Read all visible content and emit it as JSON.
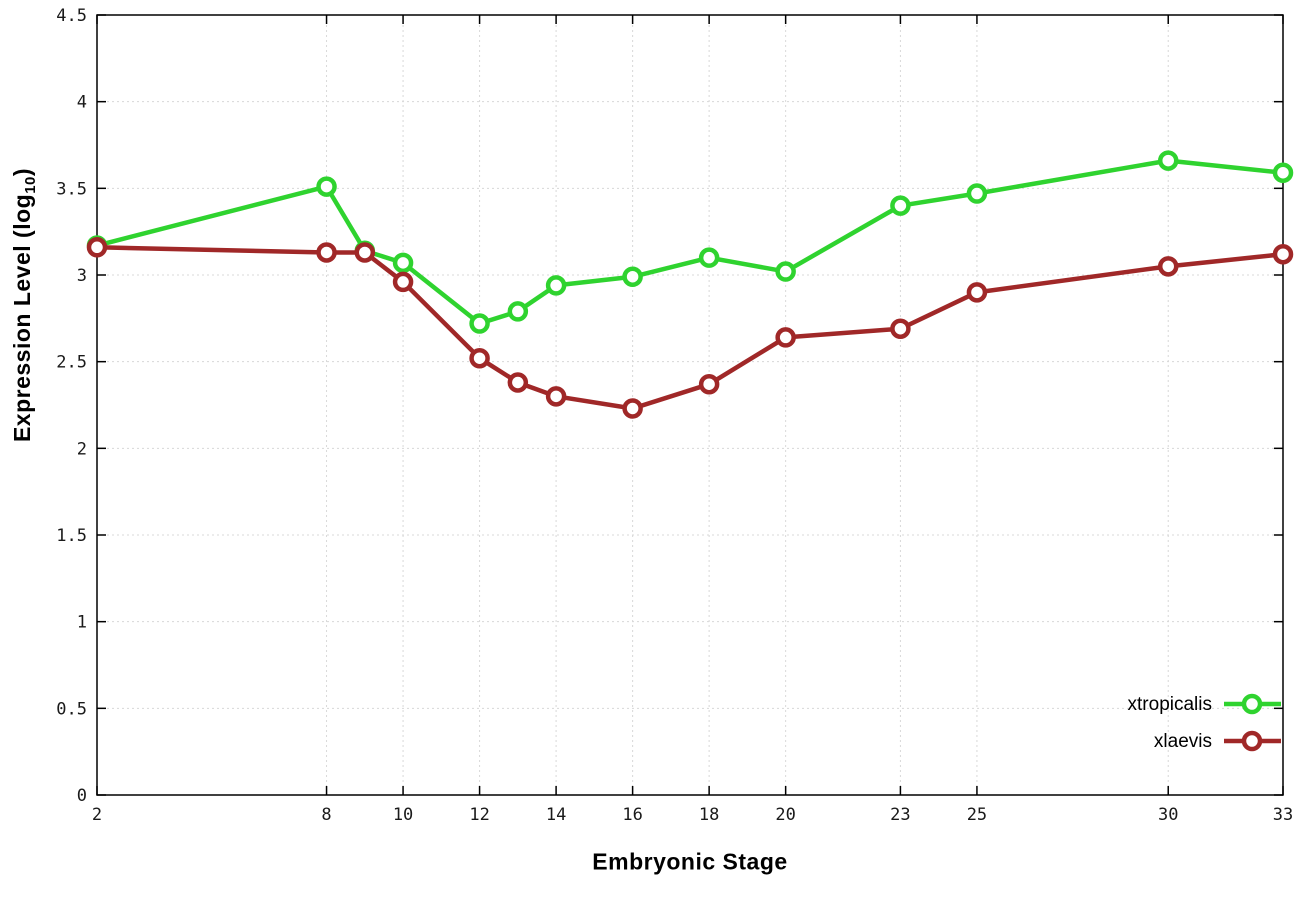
{
  "axes": {
    "ylabel_prefix": "Expression Level (log",
    "ylabel_sub": "10",
    "ylabel_suffix": ")",
    "xlabel": "Embryonic Stage"
  },
  "chart_data": {
    "type": "line",
    "title": "",
    "xlabel": "Embryonic Stage",
    "ylabel": "Expression Level (log10)",
    "xlim": [
      2,
      33
    ],
    "ylim": [
      0,
      4.5
    ],
    "grid": true,
    "legend_position": "bottom-right-inside",
    "x": [
      2,
      8,
      9,
      10,
      12,
      13,
      14,
      16,
      18,
      20,
      23,
      25,
      30,
      33
    ],
    "x_ticks": [
      2,
      8,
      10,
      12,
      14,
      16,
      18,
      20,
      23,
      25,
      30,
      33
    ],
    "x_tick_labels": [
      "2",
      "8",
      "10",
      "12",
      "14",
      "16",
      "18",
      "20",
      "23",
      "25",
      "30",
      "33"
    ],
    "y_ticks": [
      0,
      0.5,
      1,
      1.5,
      2,
      2.5,
      3,
      3.5,
      4,
      4.5
    ],
    "y_tick_labels": [
      "0",
      "0.5",
      "1",
      "1.5",
      "2",
      "2.5",
      "3",
      "3.5",
      "4",
      "4.5"
    ],
    "series": [
      {
        "name": "xtropicalis",
        "color": "#2fd32f",
        "values": [
          3.17,
          3.51,
          3.14,
          3.07,
          2.72,
          2.79,
          2.94,
          2.99,
          3.1,
          3.02,
          3.4,
          3.47,
          3.66,
          3.59
        ]
      },
      {
        "name": "xlaevis",
        "color": "#a02828",
        "values": [
          3.16,
          3.13,
          3.13,
          2.96,
          2.52,
          2.38,
          2.3,
          2.23,
          2.37,
          2.64,
          2.69,
          2.9,
          3.05,
          3.12
        ]
      }
    ],
    "colors": {
      "grid": "#d8d8d8",
      "border": "#000000",
      "tick_text": "#1a1a1a",
      "marker_fill": "#ffffff"
    }
  }
}
